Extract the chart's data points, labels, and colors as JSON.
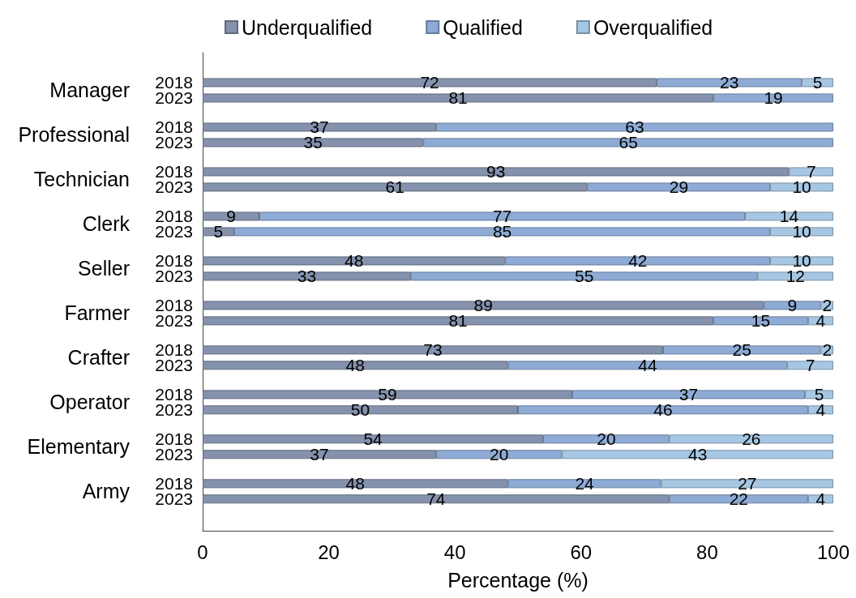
{
  "chart_data": {
    "type": "bar",
    "orientation": "horizontal",
    "stacked": true,
    "categories": [
      "2018",
      "2023",
      "2018",
      "2023",
      "2018",
      "2023",
      "2018",
      "2023",
      "2018",
      "2023",
      "2018",
      "2023",
      "2018",
      "2023",
      "2018",
      "2023",
      "2018",
      "2023",
      "2018",
      "2023"
    ],
    "annotations": [
      "Manager",
      "Professional",
      "Technician",
      "Clerk",
      "Seller",
      "Farmer",
      "Crafter",
      "Operator",
      "Elementary",
      "Army"
    ],
    "series": [
      {
        "name": "Underqualified",
        "color": "#8592ad",
        "values": [
          72,
          81,
          37,
          35,
          93,
          61,
          9,
          5,
          48,
          33,
          89,
          81,
          73,
          48.4,
          58.6,
          50,
          54,
          37,
          48.4,
          74
        ],
        "value_labels": [
          "72",
          "81",
          "37",
          "35",
          "93",
          "61",
          "9",
          "5",
          "48",
          "33",
          "89",
          "81",
          "73",
          "48",
          "59",
          "50",
          "54",
          "37",
          "48",
          "74"
        ]
      },
      {
        "name": "Qualified",
        "color": "#8eabd6",
        "values": [
          23,
          19,
          63,
          65,
          null,
          29,
          77,
          85,
          42,
          55,
          9,
          15,
          25,
          44.3,
          36.9,
          46,
          20,
          20,
          24.3,
          22
        ],
        "value_labels": [
          "23",
          "19",
          "63",
          "65",
          null,
          "29",
          "77",
          "85",
          "42",
          "55",
          "9",
          "15",
          "25",
          "44",
          "37",
          "46",
          "20",
          "20",
          "24",
          "22"
        ]
      },
      {
        "name": "Overqualified",
        "color": "#a6c7e3",
        "values": [
          5,
          null,
          null,
          null,
          7,
          10,
          14,
          10,
          10,
          12,
          2,
          4,
          2,
          7.3,
          4.5,
          4,
          26,
          43,
          27.3,
          4
        ],
        "value_labels": [
          "5",
          null,
          null,
          null,
          "7",
          "10",
          "14",
          "10",
          "10",
          "12",
          "2",
          "4",
          "2",
          "7",
          "5",
          "4",
          "26",
          "43",
          "27",
          "4"
        ]
      }
    ],
    "xlabel": "Percentage (%)",
    "xlim": [
      0,
      100
    ],
    "xticks": [
      0,
      20,
      40,
      60,
      80,
      100
    ],
    "grid": false,
    "legend": "top"
  }
}
